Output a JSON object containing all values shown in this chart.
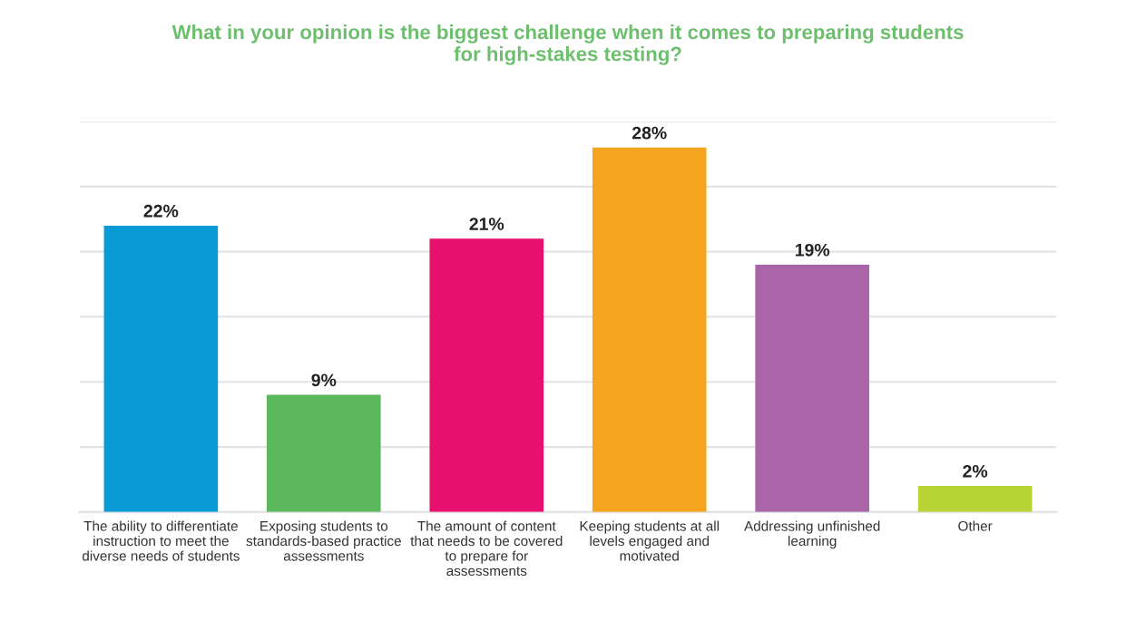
{
  "chart_data": {
    "type": "bar",
    "title": "What in your opinion is the biggest challenge when it comes to preparing students\nfor high-stakes testing?",
    "categories": [
      "The ability to differentiate\ninstruction to meet the\ndiverse needs of students",
      "Exposing students to\nstandards-based practice\nassessments",
      "The amount of content\nthat needs to be covered\nto prepare for\nassessments",
      "Keeping students at all\nlevels engaged and\nmotivated",
      "Addressing unfinished\nlearning",
      "Other"
    ],
    "values": [
      22,
      9,
      21,
      28,
      19,
      2
    ],
    "colors": [
      "#0a9ad6",
      "#5cb85c",
      "#e8106e",
      "#f5a41f",
      "#a965a8",
      "#b8d434"
    ],
    "value_labels": [
      "22%",
      "9%",
      "21%",
      "28%",
      "19%",
      "2%"
    ],
    "ylim": [
      0,
      30
    ],
    "yticks": [
      {
        "value": 0,
        "label": null
      },
      {
        "value": 5,
        "label": null
      },
      {
        "value": 10,
        "label": null
      },
      {
        "value": 15,
        "label": null
      },
      {
        "value": 20,
        "label": null
      },
      {
        "value": 25,
        "label": null
      },
      {
        "value": 30,
        "label": null
      }
    ],
    "grid": "y",
    "tick_labels": "x",
    "legend": false
  }
}
